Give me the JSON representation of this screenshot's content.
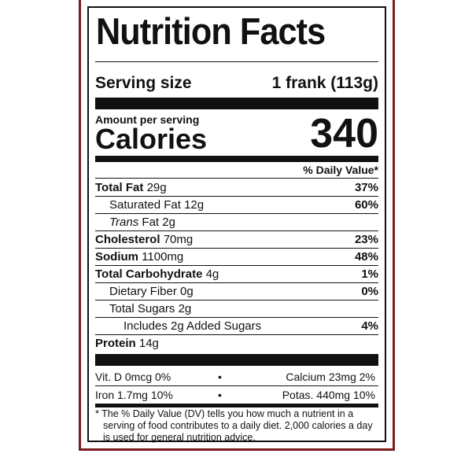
{
  "title": "Nutrition Facts",
  "serving": {
    "label": "Serving size",
    "value": "1 frank (113g)"
  },
  "amount_label": "Amount per serving",
  "calories": {
    "label": "Calories",
    "value": "340"
  },
  "dv_header": "% Daily Value*",
  "nutrients": [
    {
      "name": "Total Fat",
      "amount": "29g",
      "dv": "37%"
    },
    {
      "name": "Saturated Fat",
      "amount": "12g",
      "dv": "60%"
    },
    {
      "name_italic": "Trans",
      "name": "Fat",
      "amount": "2g"
    },
    {
      "name": "Cholesterol",
      "amount": "70mg",
      "dv": "23%"
    },
    {
      "name": "Sodium",
      "amount": "1100mg",
      "dv": "48%"
    },
    {
      "name": "Total Carbohydrate",
      "amount": "4g",
      "dv": "1%"
    },
    {
      "name": "Dietary Fiber",
      "amount": "0g",
      "dv": "0%"
    },
    {
      "name": "Total Sugars",
      "amount": "2g"
    },
    {
      "name": "Includes 2g Added Sugars",
      "dv": "4%"
    },
    {
      "name": "Protein",
      "amount": "14g"
    }
  ],
  "vitamins": [
    {
      "left": "Vit. D 0mcg 0%",
      "separator": "•",
      "right": "Calcium 23mg 2%"
    },
    {
      "left": "Iron 1.7mg 10%",
      "separator": "•",
      "right": "Potas. 440mg 10%"
    }
  ],
  "footnote": [
    "* The % Daily Value (DV) tells you how much a nutrient in a",
    "serving of food contributes to a daily diet. 2,000 calories a day",
    "is used for general nutrition advice."
  ]
}
